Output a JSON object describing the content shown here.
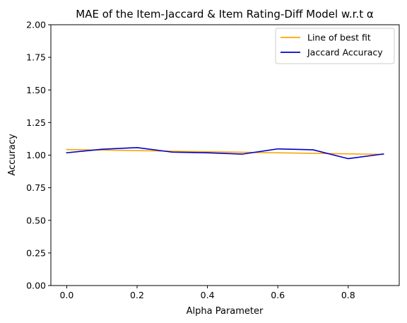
{
  "chart_data": {
    "type": "line",
    "title": "MAE of the Item-Jaccard & Item Rating-Diff Model w.r.t α",
    "xlabel": "Alpha Parameter",
    "ylabel": "Accuracy",
    "xlim": [
      -0.045,
      0.945
    ],
    "ylim": [
      0.0,
      2.0
    ],
    "x_ticks": [
      0.0,
      0.2,
      0.4,
      0.6,
      0.8
    ],
    "x_tick_labels": [
      "0.0",
      "0.2",
      "0.4",
      "0.6",
      "0.8"
    ],
    "y_ticks": [
      0.0,
      0.25,
      0.5,
      0.75,
      1.0,
      1.25,
      1.5,
      1.75,
      2.0
    ],
    "y_tick_labels": [
      "0.00",
      "0.25",
      "0.50",
      "0.75",
      "1.00",
      "1.25",
      "1.50",
      "1.75",
      "2.00"
    ],
    "grid": false,
    "legend_position": "top-right",
    "series": [
      {
        "name": "Line of best fit",
        "color": "#FFA500",
        "x": [
          0.0,
          0.1,
          0.2,
          0.3,
          0.4,
          0.5,
          0.6,
          0.7,
          0.8,
          0.9
        ],
        "values": [
          1.043,
          1.039,
          1.035,
          1.03,
          1.026,
          1.022,
          1.018,
          1.014,
          1.01,
          1.006
        ]
      },
      {
        "name": "Jaccard Accuracy",
        "color": "#0000CD",
        "x": [
          0.0,
          0.1,
          0.2,
          0.3,
          0.4,
          0.5,
          0.6,
          0.7,
          0.8,
          0.9
        ],
        "values": [
          1.018,
          1.045,
          1.058,
          1.023,
          1.018,
          1.008,
          1.048,
          1.041,
          0.973,
          1.009
        ]
      }
    ]
  }
}
